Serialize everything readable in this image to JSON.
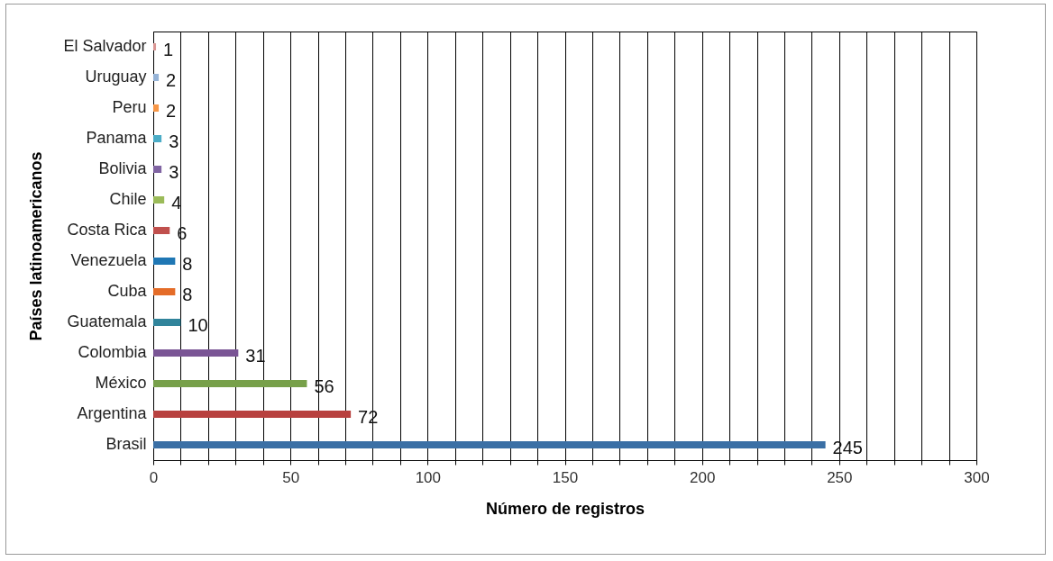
{
  "chart_data": {
    "type": "bar",
    "orientation": "horizontal",
    "xlabel": "Número de registros",
    "ylabel": "Países latinoamericanos",
    "categories": [
      "El Salvador",
      "Uruguay",
      "Peru",
      "Panama",
      "Bolivia",
      "Chile",
      "Costa Rica",
      "Venezuela",
      "Cuba",
      "Guatemala",
      "Colombia",
      "México",
      "Argentina",
      "Brasil"
    ],
    "values": [
      1,
      2,
      2,
      3,
      3,
      4,
      6,
      8,
      8,
      10,
      31,
      56,
      72,
      245
    ],
    "colors": [
      "#d99694",
      "#95b3d7",
      "#f79646",
      "#4bacc6",
      "#8064a2",
      "#9bbb59",
      "#c0504d",
      "#1f77b4",
      "#e46c28",
      "#31849b",
      "#7a5595",
      "#77a04a",
      "#b8413f",
      "#3a6fa5"
    ],
    "xlim": [
      0,
      300
    ],
    "xticks": [
      0,
      {
        "value": 10,
        "label": null
      },
      {
        "value": 20,
        "label": null
      },
      {
        "value": 30,
        "label": null
      },
      {
        "value": 40,
        "label": null
      },
      50,
      {
        "value": 60,
        "label": null
      },
      {
        "value": 70,
        "label": null
      },
      {
        "value": 80,
        "label": null
      },
      {
        "value": 90,
        "label": null
      },
      100,
      {
        "value": 110,
        "label": null
      },
      {
        "value": 120,
        "label": null
      },
      {
        "value": 130,
        "label": null
      },
      {
        "value": 140,
        "label": null
      },
      150,
      {
        "value": 160,
        "label": null
      },
      {
        "value": 170,
        "label": null
      },
      {
        "value": 180,
        "label": null
      },
      {
        "value": 190,
        "label": null
      },
      200,
      {
        "value": 210,
        "label": null
      },
      {
        "value": 220,
        "label": null
      },
      {
        "value": 230,
        "label": null
      },
      {
        "value": 240,
        "label": null
      },
      250,
      {
        "value": 260,
        "label": null
      },
      {
        "value": 270,
        "label": null
      },
      {
        "value": 280,
        "label": null
      },
      {
        "value": 290,
        "label": null
      },
      300
    ],
    "grid": "x",
    "data_labels": true
  }
}
